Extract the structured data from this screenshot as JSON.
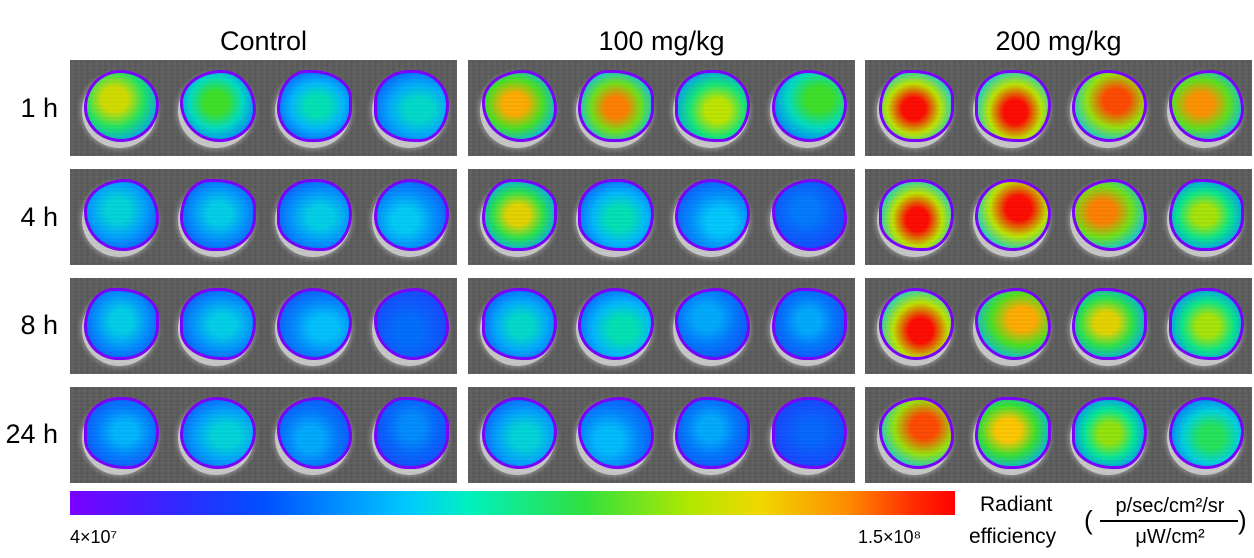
{
  "groups": [
    "Control",
    "100 mg/kg",
    "200 mg/kg"
  ],
  "timepoints": [
    "1 h",
    "4 h",
    "8 h",
    "24 h"
  ],
  "colorbar": {
    "min_label": "4×10⁷",
    "max_label": "1.5×10⁸",
    "label_line1": "Radiant",
    "label_line2": "efficiency",
    "unit_numerator": "p/sec/cm²/sr",
    "unit_denominator": "μW/cm²",
    "open_paren": "(",
    "close_paren": ")",
    "stops": [
      "#7a00ff",
      "#0050ff",
      "#00c8ff",
      "#30e040",
      "#f0d800",
      "#ff8a00",
      "#ff0000"
    ]
  },
  "signal_levels": [
    [
      [
        0.75,
        0.6,
        0.45,
        0.42
      ],
      [
        0.85,
        0.9,
        0.72,
        0.6
      ],
      [
        1.0,
        1.0,
        0.95,
        0.88
      ]
    ],
    [
      [
        0.4,
        0.38,
        0.38,
        0.36
      ],
      [
        0.78,
        0.45,
        0.35,
        0.22
      ],
      [
        1.0,
        1.0,
        0.9,
        0.7
      ]
    ],
    [
      [
        0.38,
        0.38,
        0.34,
        0.2
      ],
      [
        0.42,
        0.45,
        0.3,
        0.3
      ],
      [
        1.0,
        0.85,
        0.78,
        0.7
      ]
    ],
    [
      [
        0.32,
        0.4,
        0.3,
        0.25
      ],
      [
        0.4,
        0.33,
        0.3,
        0.18
      ],
      [
        0.95,
        0.82,
        0.68,
        0.55
      ]
    ]
  ]
}
